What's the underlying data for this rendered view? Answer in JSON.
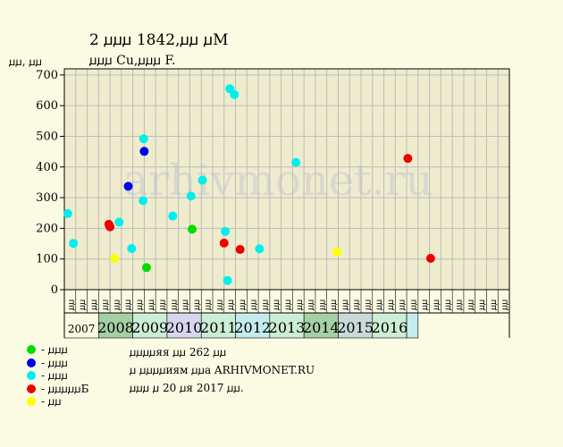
{
  "title": "2 ꙡꙡꙡ 1842,ꙡꙡ ꙡM",
  "subtitle": "ꙡꙡꙡ Cu,ꙡꙡꙡ F.",
  "watermark": "arhivmonet.ru",
  "colors": {
    "background": "#fbfbe3",
    "plot_bg": "#efeccd",
    "grid": "#bcbcbc",
    "year_bg_light": "#cdeed6",
    "year_bg_mid": "#a5cfa5",
    "year_bg_dark": "#8fc0a0",
    "year_bg_lav": "#d8d6ee",
    "year_bg_cyan": "#c4ecef",
    "year_bg_grey": "#c8d9d8"
  },
  "chart_data": {
    "type": "scatter",
    "ylabel": "ꙡꙡ, ꙡꙡ",
    "ylim": [
      0,
      720
    ],
    "yticks": [
      0,
      100,
      200,
      300,
      400,
      500,
      600,
      700
    ],
    "grid": true,
    "months": [
      "ꙡꙡ",
      "ꙡꙡ",
      "ꙡꙡ",
      "ꙡꙡ",
      "ꙡꙡ",
      "ꙡꙡ",
      "ꙡꙡ",
      "ꙡꙡ",
      "ꙡꙡ",
      "ꙡꙡ",
      "ꙡꙡ",
      "ꙡꙡ",
      "ꙡꙡ",
      "ꙡꙡ",
      "ꙡꙡ",
      "ꙡꙡ",
      "ꙡꙡ",
      "ꙡꙡ",
      "ꙡꙡ",
      "ꙡꙡ",
      "ꙡꙡ",
      "ꙡꙡ",
      "ꙡꙡ",
      "ꙡꙡ",
      "ꙡꙡ",
      "ꙡꙡ",
      "ꙡꙡ",
      "ꙡꙡ",
      "ꙡꙡ",
      "ꙡꙡ",
      "ꙡꙡ",
      "ꙡꙡ",
      "ꙡꙡ",
      "ꙡꙡ",
      "ꙡꙡ",
      "ꙡꙡ",
      "ꙡꙡ",
      "ꙡꙡ",
      "ꙡꙡ"
    ],
    "years": [
      {
        "label": "2007",
        "span": [
          0,
          3
        ],
        "shade": "none"
      },
      {
        "label": "2008",
        "span": [
          3,
          6
        ],
        "shade": "mid"
      },
      {
        "label": "2009",
        "span": [
          6,
          9
        ],
        "shade": "light"
      },
      {
        "label": "2010",
        "span": [
          9,
          12
        ],
        "shade": "lav"
      },
      {
        "label": "2011",
        "span": [
          12,
          15
        ],
        "shade": "light"
      },
      {
        "label": "2012",
        "span": [
          15,
          18
        ],
        "shade": "cyan"
      },
      {
        "label": "2013",
        "span": [
          18,
          21
        ],
        "shade": "light"
      },
      {
        "label": "2014",
        "span": [
          21,
          24
        ],
        "shade": "mid"
      },
      {
        "label": "2015",
        "span": [
          24,
          27
        ],
        "shade": "grey"
      },
      {
        "label": "2016",
        "span": [
          27,
          30
        ],
        "shade": "light"
      },
      {
        "label": "",
        "span": [
          30,
          31
        ],
        "shade": "cyan"
      }
    ],
    "series": [
      {
        "name": "ꙡꙡꙡ",
        "color": "#00dd00",
        "points": [
          [
            7.2,
            72
          ],
          [
            11.2,
            197
          ]
        ]
      },
      {
        "name": "ꙡꙡꙡ",
        "color": "#0000ee",
        "points": [
          [
            5.6,
            337
          ],
          [
            7.0,
            451
          ]
        ]
      },
      {
        "name": "ꙡꙡꙡ",
        "color": "#00eeee",
        "points": [
          [
            0.3,
            248
          ],
          [
            0.8,
            151
          ],
          [
            4.8,
            220
          ],
          [
            5.9,
            134
          ],
          [
            6.95,
            492
          ],
          [
            6.9,
            290
          ],
          [
            9.5,
            240
          ],
          [
            11.1,
            305
          ],
          [
            12.1,
            357
          ],
          [
            14.1,
            190
          ],
          [
            14.3,
            30
          ],
          [
            14.5,
            655
          ],
          [
            14.9,
            636
          ],
          [
            17.1,
            133
          ],
          [
            20.3,
            415
          ]
        ]
      },
      {
        "name": "ꙡꙡꙡꙡꙡБ",
        "color": "#ee0000",
        "points": [
          [
            3.9,
            213
          ],
          [
            4.0,
            205
          ],
          [
            14.0,
            152
          ],
          [
            15.4,
            131
          ],
          [
            30.1,
            428
          ],
          [
            32.1,
            102
          ]
        ]
      },
      {
        "name": "ꙡꙡ",
        "color": "#ffff00",
        "points": [
          [
            4.4,
            102
          ],
          [
            23.9,
            122
          ]
        ]
      }
    ]
  },
  "notes": [
    "ꙡꙡꙡꙡяя ꙡꙡ 262 ꙡꙡ",
    "ꙡ ꙡꙡꙡꙡиям ꙡꙡa ARHIVMONET.RU",
    "ꙡꙡꙡ ꙡ 20 ꙡя 2017 ꙡꙡ."
  ]
}
